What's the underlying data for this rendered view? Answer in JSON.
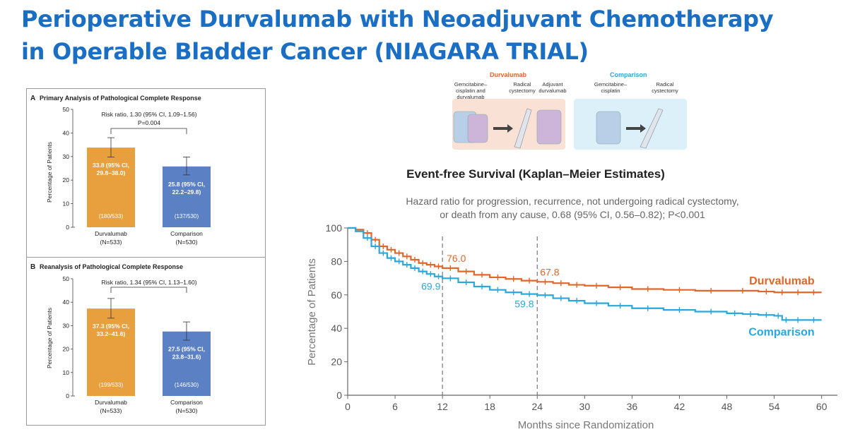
{
  "slide": {
    "title_line1": "Perioperative Durvalumab with Neoadjuvant Chemotherapy",
    "title_line2": "in Operable Bladder Cancer (NIAGARA TRIAL)"
  },
  "schema": {
    "durvalumab_heading": "Durvalumab",
    "comparison_heading": "Comparison",
    "durva_step1": "Gemcitabine–cisplatin and durvalumab",
    "durva_step2": "Radical cystectomy",
    "durva_step3": "Adjuvant durvalumab",
    "comp_step1": "Gemcitabine–cisplatin",
    "comp_step2": "Radical cystectomy",
    "colors": {
      "durvalumab": "#e0672a",
      "comparison": "#2aa7dd"
    }
  },
  "chart_data": [
    {
      "type": "bar",
      "panel_letter": "A",
      "title": "Primary Analysis of Pathological Complete Response",
      "ylabel": "Percentage of Patients",
      "ylim": [
        0,
        50
      ],
      "yticks": [
        "0",
        "10",
        "20",
        "30",
        "40",
        "50"
      ],
      "categories": [
        "Durvalumab",
        "Comparison"
      ],
      "category_sublabels": [
        "(N=533)",
        "(N=530)"
      ],
      "values": [
        33.8,
        25.8
      ],
      "ci_low": [
        29.8,
        22.2
      ],
      "ci_high": [
        38.0,
        29.8
      ],
      "value_labels_line1": [
        "33.8 (95% CI,",
        "25.8 (95% CI,"
      ],
      "value_labels_line2": [
        "29.8–38.0)",
        "22.2–29.8)"
      ],
      "count_labels": [
        "(180/533)",
        "(137/530)"
      ],
      "bar_colors": [
        "#e8a03f",
        "#5b80c4"
      ],
      "annotation_line1": "Risk ratio, 1.30 (95% CI, 1.09–1.56)",
      "annotation_line2": "P=0.004"
    },
    {
      "type": "bar",
      "panel_letter": "B",
      "title": "Reanalysis of Pathological Complete Response",
      "ylabel": "Percentage of Patients",
      "ylim": [
        0,
        50
      ],
      "yticks": [
        "0",
        "10",
        "20",
        "30",
        "40",
        "50"
      ],
      "categories": [
        "Durvalumab",
        "Comparison"
      ],
      "category_sublabels": [
        "(N=533)",
        "(N=530)"
      ],
      "values": [
        37.3,
        27.5
      ],
      "ci_low": [
        33.2,
        23.8
      ],
      "ci_high": [
        41.6,
        31.6
      ],
      "value_labels_line1": [
        "37.3 (95% CI,",
        "27.5 (95% CI,"
      ],
      "value_labels_line2": [
        "33.2–41.6)",
        "23.8–31.6)"
      ],
      "count_labels": [
        "(199/533)",
        "(146/530)"
      ],
      "bar_colors": [
        "#e8a03f",
        "#5b80c4"
      ],
      "annotation_line1": "Risk ratio, 1.34 (95% CI, 1.13–1.60)",
      "annotation_line2": ""
    },
    {
      "type": "line",
      "title": "Event-free Survival (Kaplan–Meier Estimates)",
      "subtitle_line1": "Hazard ratio for progression, recurrence, not undergoing radical cystectomy,",
      "subtitle_line2": "or death from any cause, 0.68 (95% CI, 0.56–0.82); P<0.001",
      "xlabel": "Months since Randomization",
      "ylabel": "Percentage of Patients",
      "xlim": [
        0,
        62
      ],
      "ylim": [
        0,
        100
      ],
      "xticks": [
        0,
        6,
        12,
        18,
        24,
        30,
        36,
        42,
        48,
        54,
        60
      ],
      "yticks": [
        0,
        20,
        40,
        60,
        80,
        100
      ],
      "reference_lines_x": [
        12,
        24
      ],
      "series": [
        {
          "name": "Durvalumab",
          "color": "#e0672a",
          "x": [
            0,
            1,
            2,
            3,
            4,
            5,
            6,
            7,
            8,
            9,
            10,
            11,
            12,
            14,
            16,
            18,
            20,
            22,
            24,
            26,
            28,
            30,
            33,
            36,
            40,
            44,
            48,
            52,
            54,
            56,
            58,
            60
          ],
          "y": [
            100,
            99,
            97,
            93,
            89,
            87,
            85,
            83,
            81,
            79,
            78,
            77,
            76,
            74,
            72,
            70.5,
            69.5,
            68.5,
            67.8,
            67,
            66,
            65.5,
            64.5,
            63.5,
            63,
            62.5,
            62.5,
            62,
            61.5,
            61.5,
            61.5,
            61.5
          ],
          "point_labels": [
            {
              "x": 12,
              "y": 76.0,
              "text": "76.0"
            },
            {
              "x": 24,
              "y": 67.8,
              "text": "67.8"
            }
          ]
        },
        {
          "name": "Comparison",
          "color": "#2aa7dd",
          "x": [
            0,
            1,
            2,
            3,
            4,
            5,
            6,
            7,
            8,
            9,
            10,
            11,
            12,
            14,
            16,
            18,
            20,
            22,
            24,
            26,
            28,
            30,
            33,
            36,
            40,
            44,
            48,
            50,
            52,
            54,
            55,
            56,
            58,
            60
          ],
          "y": [
            100,
            98,
            94,
            89,
            85,
            82,
            80,
            78,
            76,
            74,
            72.5,
            71,
            69.9,
            67.5,
            65,
            63,
            61.5,
            60.5,
            59.8,
            58,
            56.5,
            55,
            53.5,
            52,
            51,
            50,
            49,
            48.5,
            48,
            47.5,
            45,
            45,
            45,
            45
          ],
          "point_labels": [
            {
              "x": 12,
              "y": 69.9,
              "text": "69.9"
            },
            {
              "x": 24,
              "y": 59.8,
              "text": "59.8"
            }
          ]
        }
      ]
    }
  ]
}
